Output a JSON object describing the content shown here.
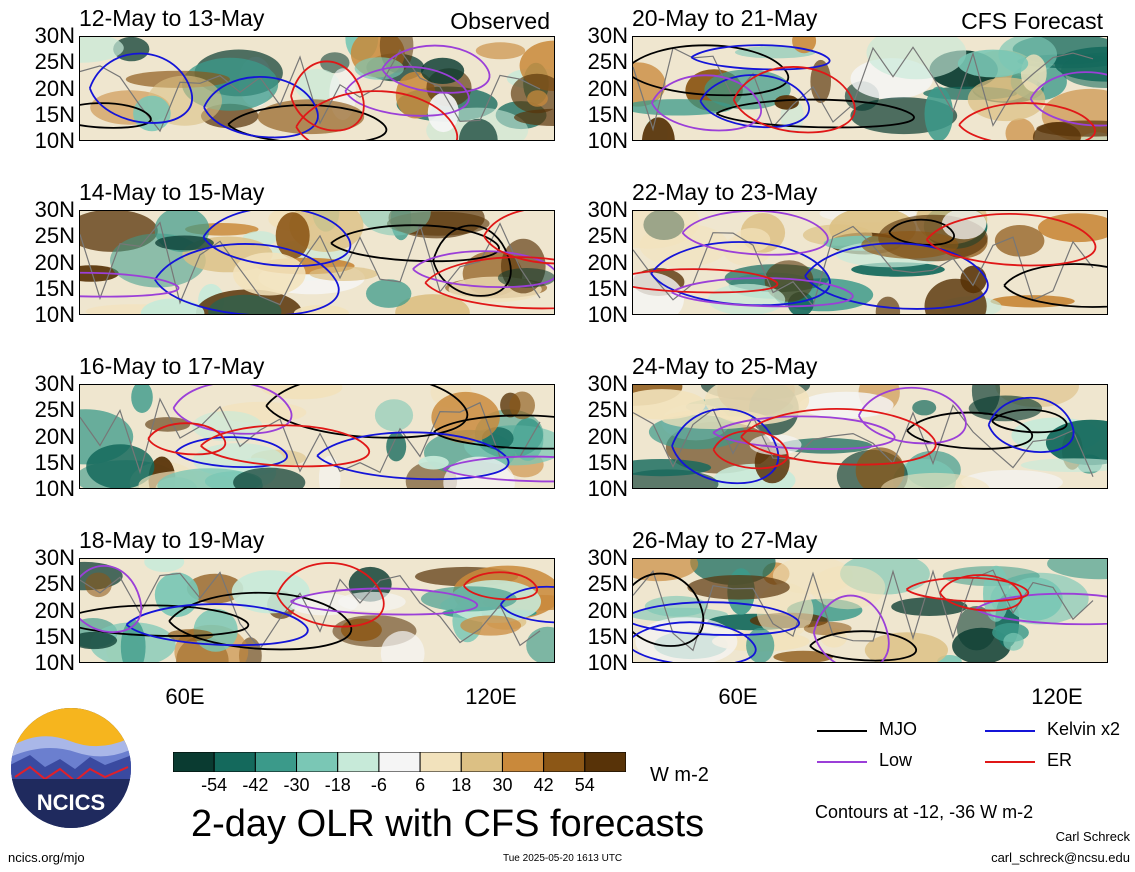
{
  "panels": [
    {
      "title": "12-May to 13-May",
      "tag": "Observed"
    },
    {
      "title": "14-May to 15-May",
      "tag": ""
    },
    {
      "title": "16-May to 17-May",
      "tag": ""
    },
    {
      "title": "18-May to 19-May",
      "tag": ""
    },
    {
      "title": "20-May to 21-May",
      "tag": "CFS Forecast"
    },
    {
      "title": "22-May to 23-May",
      "tag": ""
    },
    {
      "title": "24-May to 25-May",
      "tag": ""
    },
    {
      "title": "26-May to 27-May",
      "tag": ""
    }
  ],
  "axes": {
    "y_ticks": [
      "30N",
      "25N",
      "20N",
      "15N",
      "10N"
    ],
    "x_ticks": [
      "60E",
      "120E"
    ]
  },
  "colorbar": {
    "labels": [
      "-54",
      "-42",
      "-30",
      "-18",
      "-6",
      "6",
      "18",
      "30",
      "42",
      "54"
    ],
    "colors": [
      "#0a3b31",
      "#14695c",
      "#3b9a8a",
      "#7ac7b5",
      "#c7ead9",
      "#f5f5f5",
      "#f2e2bc",
      "#dcc084",
      "#c9893b",
      "#8c5716",
      "#583308"
    ],
    "units": "W m-2"
  },
  "legend": {
    "items": [
      {
        "label": "MJO",
        "color": "#000000"
      },
      {
        "label": "Kelvin x2",
        "color": "#1414d8"
      },
      {
        "label": "Low",
        "color": "#9b3fd8"
      },
      {
        "label": "ER",
        "color": "#e01717"
      }
    ],
    "contours_note": "Contours at -12, -36 W m-2"
  },
  "title": "2-day OLR with CFS forecasts",
  "logo_text": "NCICS",
  "footer": {
    "url": "ncics.org/mjo",
    "timestamp": "Tue 2025-05-20 1613 UTC",
    "author": "Carl Schreck",
    "email": "carl_schreck@ncsu.edu"
  }
}
